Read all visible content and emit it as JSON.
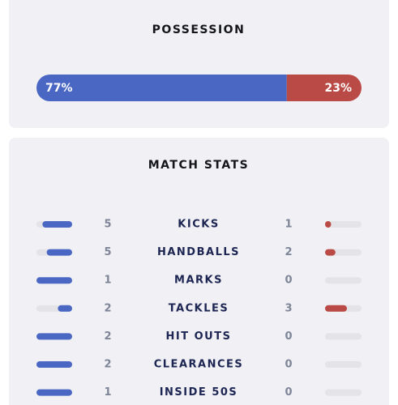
{
  "possession": {
    "title": "POSSESSION",
    "values": [
      77,
      23
    ],
    "value_labels": [
      "77%",
      "23%"
    ]
  },
  "stats": {
    "title": "MATCH STATS",
    "rows": [
      {
        "home": 5,
        "label": "KICKS",
        "away": 1
      },
      {
        "home": 5,
        "label": "HANDBALLS",
        "away": 2
      },
      {
        "home": 1,
        "label": "MARKS",
        "away": 0
      },
      {
        "home": 2,
        "label": "TACKLES",
        "away": 3
      },
      {
        "home": 2,
        "label": "HIT OUTS",
        "away": 0
      },
      {
        "home": 2,
        "label": "CLEARANCES",
        "away": 0
      },
      {
        "home": 1,
        "label": "INSIDE 50S",
        "away": 0
      }
    ]
  }
}
